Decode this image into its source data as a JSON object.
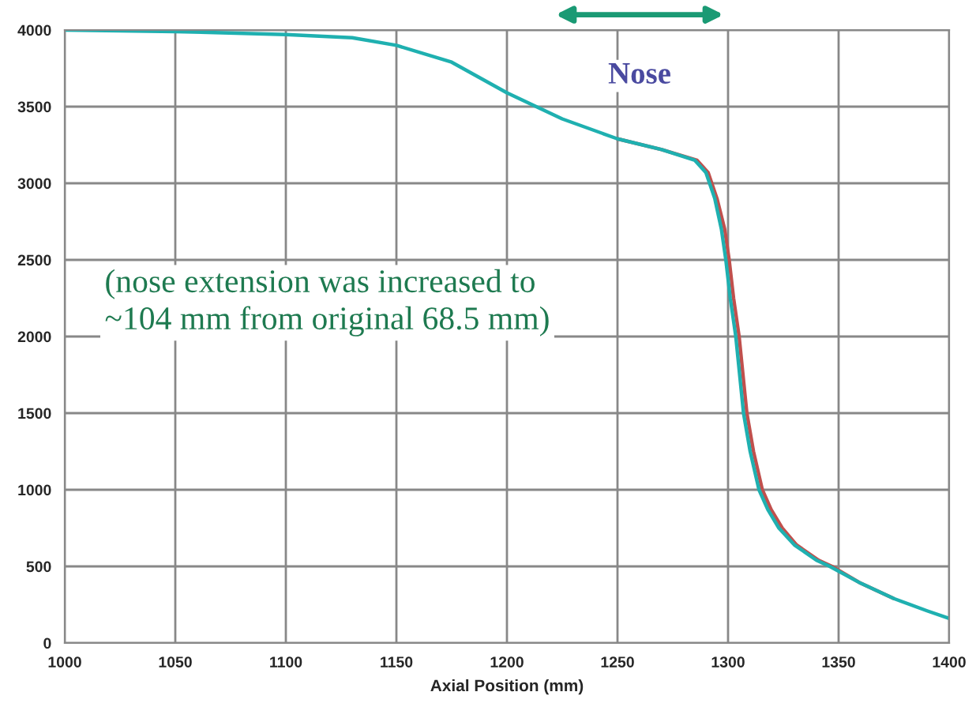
{
  "chart_data": {
    "type": "line",
    "xlabel": "Axial Position (mm)",
    "xlim": [
      1000,
      1400
    ],
    "xticks": [
      1000,
      1050,
      1100,
      1150,
      1200,
      1250,
      1300,
      1350,
      1400
    ],
    "ylim": [
      0,
      4000
    ],
    "yticks": [
      0,
      500,
      1000,
      1500,
      2000,
      2500,
      3000,
      3500,
      4000
    ],
    "grid": true,
    "series": [
      {
        "color": "#c0504d",
        "x": [
          1250,
          1270,
          1286,
          1291,
          1295,
          1298.5,
          1300.5,
          1302.5,
          1305,
          1308.5,
          1311.5,
          1315.5,
          1319.5,
          1324.5,
          1331,
          1341,
          1347,
          1360,
          1375
        ],
        "values": [
          3290,
          3220,
          3150,
          3070,
          2900,
          2700,
          2500,
          2250,
          2000,
          1500,
          1250,
          1000,
          870,
          750,
          640,
          540,
          500,
          390,
          290
        ]
      },
      {
        "color": "#1fb0b0",
        "x": [
          1000,
          1050,
          1100,
          1130,
          1150,
          1175,
          1200,
          1225,
          1250,
          1270,
          1285,
          1290,
          1294,
          1297,
          1299,
          1301,
          1303.5,
          1307,
          1310,
          1314,
          1318,
          1323,
          1330,
          1340,
          1346,
          1360,
          1375,
          1390,
          1400
        ],
        "values": [
          4000,
          3990,
          3970,
          3950,
          3900,
          3790,
          3590,
          3420,
          3290,
          3220,
          3150,
          3070,
          2900,
          2700,
          2500,
          2250,
          2000,
          1500,
          1250,
          1000,
          870,
          750,
          640,
          540,
          500,
          390,
          290,
          210,
          160
        ]
      }
    ],
    "annotations": [
      {
        "text": "Nose",
        "x": 1260,
        "y": 3700
      },
      "(nose extension was increased to\n~104 mm from original 68.5 mm)"
    ]
  }
}
